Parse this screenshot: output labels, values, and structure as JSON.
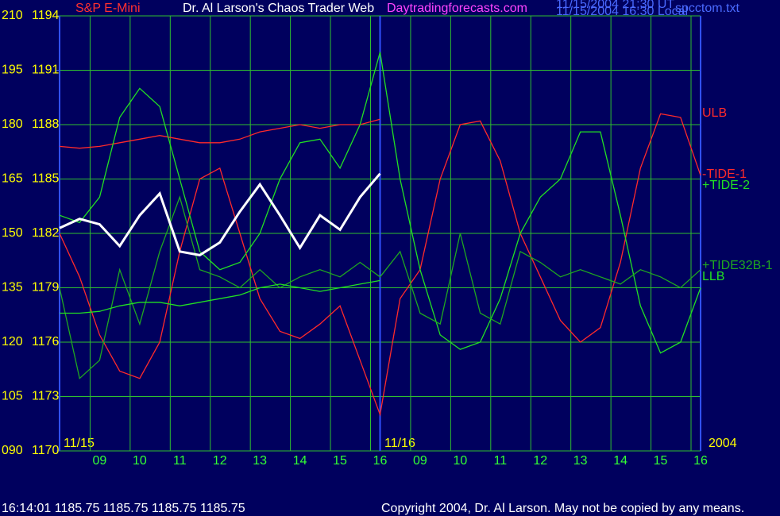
{
  "chart_data": {
    "type": "line",
    "title": "Dr. Al Larson's Chaos Trader Web",
    "subtitle": "S&P E-Mini",
    "site": "Daytradingforecasts.com",
    "timestamps": [
      "11/15/2004 21:30 UT",
      "11/15/2004 16:30 Local"
    ],
    "file": "spcctom.txt",
    "date_labels": [
      "11/15",
      "11/16",
      "2004"
    ],
    "status_line": "16:14:01  1185.75 1185.75 1185.75 1185.75",
    "copyright": "Copyright 2004, Dr. Al Larson. May not be copied by any means.",
    "x": [
      0,
      0.5,
      1,
      1.5,
      2,
      2.5,
      3,
      3.5,
      4,
      4.5,
      5,
      5.5,
      6,
      6.5,
      7,
      7.5,
      8,
      8.5,
      9,
      9.5,
      10,
      10.5,
      11,
      11.5,
      12,
      12.5,
      13,
      13.5,
      14,
      14.5,
      15,
      15.5,
      16
    ],
    "xlim": [
      0,
      16
    ],
    "xticks": [
      {
        "value": 1,
        "label": "09"
      },
      {
        "value": 2,
        "label": "10"
      },
      {
        "value": 3,
        "label": "11"
      },
      {
        "value": 4,
        "label": "12"
      },
      {
        "value": 5,
        "label": "13"
      },
      {
        "value": 6,
        "label": "14"
      },
      {
        "value": 7,
        "label": "15"
      },
      {
        "value": 8,
        "label": "16"
      },
      {
        "value": 9,
        "label": "09"
      },
      {
        "value": 10,
        "label": "10"
      },
      {
        "value": 11,
        "label": "11"
      },
      {
        "value": 12,
        "label": "12"
      },
      {
        "value": 13,
        "label": "13"
      },
      {
        "value": 14,
        "label": "14"
      },
      {
        "value": 15,
        "label": "15"
      },
      {
        "value": 16,
        "label": "16"
      }
    ],
    "day_divider": 8,
    "ylim": [
      90,
      210
    ],
    "yticks": [
      {
        "value": 90,
        "label": "090"
      },
      105,
      120,
      135,
      150,
      165,
      180,
      195,
      210
    ],
    "y2lim": [
      1170,
      1194
    ],
    "y2ticks": [
      1170,
      1173,
      1176,
      1179,
      1182,
      1185,
      1188,
      1191,
      1194
    ],
    "grid": true,
    "series": [
      {
        "name": "ULB",
        "color": "#ff2a2a",
        "values": [
          174,
          173.5,
          174,
          175,
          176,
          177,
          176,
          175,
          175,
          176,
          178,
          179,
          180,
          179,
          180,
          180,
          181.5,
          null,
          null,
          null,
          null,
          null,
          null,
          null,
          null,
          null,
          null,
          null,
          null,
          null,
          null,
          null,
          null
        ]
      },
      {
        "name": "-TIDE-1",
        "color": "#ff2a2a",
        "values": [
          150,
          138,
          122,
          112,
          110,
          120,
          145,
          165,
          168,
          150,
          132,
          123,
          121,
          125,
          130,
          115,
          100,
          132,
          140,
          165,
          180,
          181,
          170,
          150,
          138,
          126,
          120,
          124,
          142,
          168,
          183,
          182,
          166
        ]
      },
      {
        "name": "+TIDE-2",
        "color": "#22e022",
        "values": [
          155,
          153,
          160,
          182,
          190,
          185,
          165,
          145,
          140,
          142,
          150,
          165,
          175,
          176,
          168,
          180,
          200,
          165,
          140,
          122,
          118,
          120,
          132,
          150,
          160,
          165,
          178,
          178,
          155,
          130,
          117,
          120,
          135
        ]
      },
      {
        "name": "+TIDE32B-1",
        "color": "#1fa81f",
        "values": [
          135,
          110,
          115,
          140,
          125,
          145,
          160,
          140,
          138,
          135,
          140,
          135,
          138,
          140,
          138,
          142,
          138,
          145,
          128,
          125,
          150,
          128,
          125,
          145,
          142,
          138,
          140,
          138,
          136,
          140,
          138,
          135,
          140
        ]
      },
      {
        "name": "LLB",
        "color": "#22e022",
        "values": [
          128,
          128,
          128.5,
          130,
          131,
          131,
          130,
          131,
          132,
          133,
          135,
          136,
          135,
          134,
          135,
          136,
          137,
          null,
          null,
          null,
          null,
          null,
          null,
          null,
          null,
          null,
          null,
          null,
          null,
          null,
          null,
          null,
          null
        ]
      },
      {
        "name": "S&P E-Mini",
        "color": "#ffffff",
        "axis": "y2",
        "values": [
          1182.3,
          1182.8,
          1182.5,
          1181.3,
          1183,
          1184.2,
          1181,
          1180.8,
          1181.5,
          1183.2,
          1184.7,
          1183,
          1181.2,
          1183,
          1182.2,
          1184,
          1185.3,
          null,
          null,
          null,
          null,
          null,
          null,
          null,
          null,
          null,
          null,
          null,
          null,
          null,
          null,
          null,
          null
        ]
      }
    ]
  }
}
